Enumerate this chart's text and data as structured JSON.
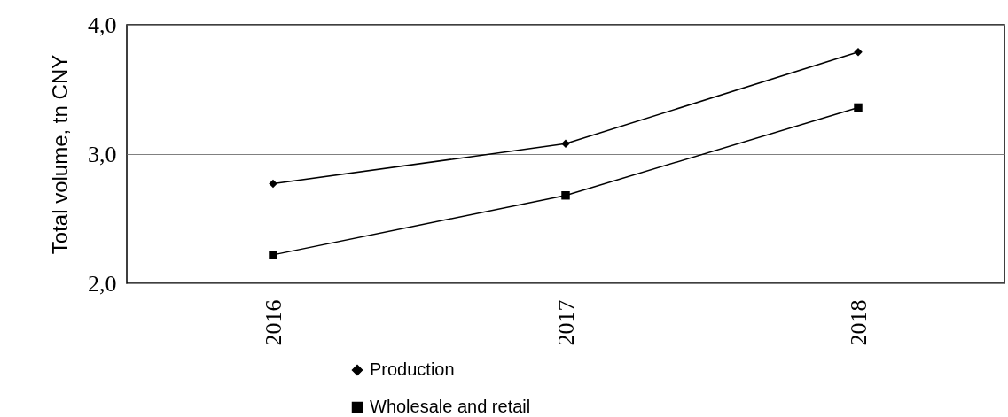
{
  "chart_data": {
    "type": "line",
    "ylabel": "Total volume, tn CNY",
    "categories": [
      "2016",
      "2017",
      "2018"
    ],
    "series": [
      {
        "name": "Production",
        "color": "#000000",
        "marker": "diamond",
        "values": [
          2.77,
          3.08,
          3.79
        ]
      },
      {
        "name": "Wholesale and retail",
        "color": "#000000",
        "marker": "square",
        "values": [
          2.22,
          2.68,
          3.36
        ]
      }
    ],
    "ylim": [
      2,
      4
    ],
    "yticks": [
      {
        "value": 2,
        "label": "2,0"
      },
      {
        "value": 3,
        "label": "3,0"
      },
      {
        "value": 4,
        "label": "4,0"
      }
    ],
    "grid": "y",
    "legend": "bottom",
    "line_style": "solid"
  }
}
